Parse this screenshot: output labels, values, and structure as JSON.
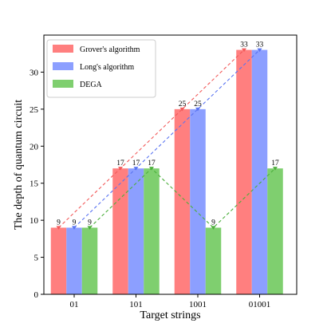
{
  "chart_data": {
    "type": "bar",
    "categories": [
      "01",
      "101",
      "1001",
      "01001"
    ],
    "series": [
      {
        "name": "Grover's algorithm",
        "values": [
          9,
          17,
          25,
          33
        ],
        "color": "#ff7f7f",
        "line_color": "#f25a5a"
      },
      {
        "name": "Long's algorithm",
        "values": [
          9,
          17,
          25,
          33
        ],
        "color": "#8c9fff",
        "line_color": "#5a74f2"
      },
      {
        "name": "DEGA",
        "values": [
          9,
          17,
          9,
          17
        ],
        "color": "#7fcf6f",
        "line_color": "#4caf3c"
      }
    ],
    "xlabel": "Target strings",
    "ylabel": "The depth of quantum circuit",
    "ylim": [
      0,
      35
    ],
    "yticks": [
      0,
      5,
      10,
      15,
      20,
      25,
      30
    ],
    "grid": false,
    "legend_position": "top-left",
    "overlay": "dashed trend lines with markers through each series' bar tops"
  }
}
